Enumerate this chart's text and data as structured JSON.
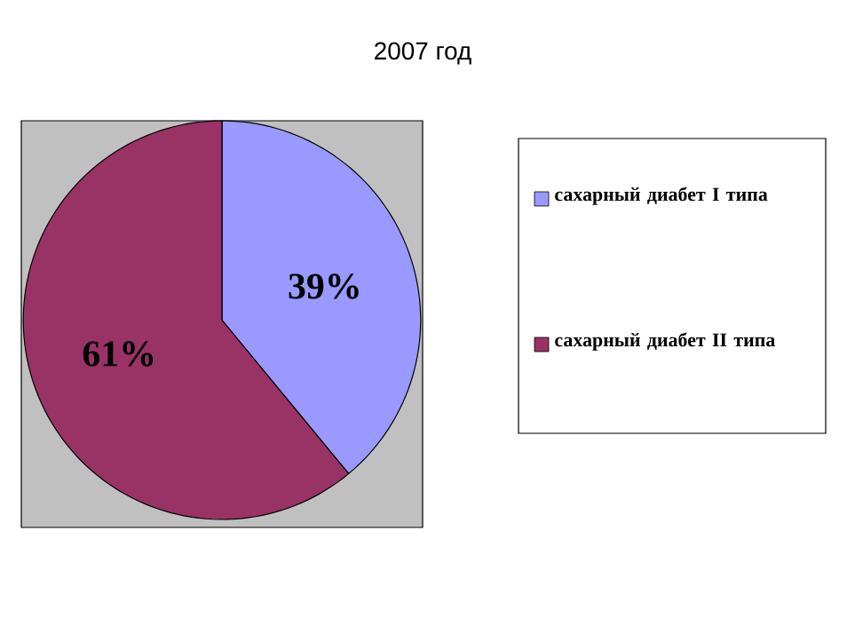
{
  "chart_data": {
    "type": "pie",
    "title": "2007 год",
    "categories": [
      "сахарный диабет I типа",
      "сахарный диабет II типа"
    ],
    "values": [
      39,
      61
    ],
    "colors": [
      "#9999ff",
      "#993366"
    ],
    "value_labels": [
      "39%",
      "61%"
    ],
    "legend": "right"
  }
}
